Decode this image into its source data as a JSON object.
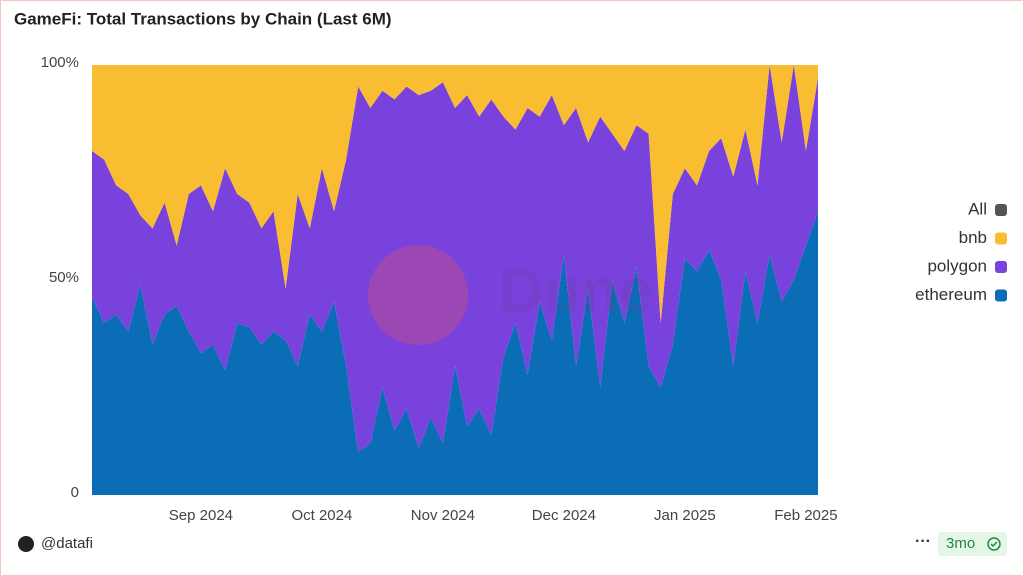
{
  "chart_data": {
    "type": "stacked_area",
    "title": "GameFi: Total Transactions by Chain (Last 6M)",
    "watermark": "Dune",
    "author": "@datafi",
    "age_badge": "3mo",
    "legend_toggle": "All",
    "categories": [
      null,
      null,
      null,
      null,
      null,
      null,
      null,
      null,
      null,
      "Sep 2024",
      null,
      null,
      null,
      null,
      null,
      null,
      null,
      null,
      null,
      "Oct 2024",
      null,
      null,
      null,
      null,
      null,
      null,
      null,
      null,
      null,
      "Nov 2024",
      null,
      null,
      null,
      null,
      null,
      null,
      null,
      null,
      null,
      "Dec 2024",
      null,
      null,
      null,
      null,
      null,
      null,
      null,
      null,
      null,
      "Jan 2025",
      null,
      null,
      null,
      null,
      null,
      null,
      null,
      null,
      null,
      "Feb 2025",
      null
    ],
    "series": [
      {
        "name": "ethereum",
        "color": "#0a6db5",
        "values": [
          46,
          40,
          42,
          38,
          49,
          35,
          42,
          44,
          38,
          33,
          35,
          29,
          40,
          39,
          35,
          38,
          36,
          30,
          42,
          38,
          45,
          30,
          10,
          12,
          25,
          15,
          20,
          11,
          18,
          12,
          30,
          16,
          20,
          14,
          32,
          40,
          28,
          45,
          36,
          56,
          30,
          48,
          25,
          50,
          40,
          53,
          30,
          25,
          35,
          55,
          52,
          57,
          50,
          30,
          52,
          40,
          56,
          45,
          50,
          58,
          66
        ]
      },
      {
        "name": "polygon",
        "color": "#7a42dc",
        "values": [
          34,
          38,
          30,
          32,
          16,
          27,
          26,
          14,
          32,
          39,
          31,
          47,
          30,
          29,
          27,
          28,
          12,
          40,
          20,
          38,
          21,
          48,
          85,
          78,
          69,
          77,
          75,
          82,
          76,
          84,
          60,
          77,
          68,
          78,
          56,
          45,
          62,
          43,
          57,
          30,
          60,
          34,
          63,
          34,
          40,
          33,
          54,
          15,
          35,
          21,
          20,
          23,
          33,
          44,
          33,
          32,
          44,
          37,
          50,
          22,
          31
        ]
      },
      {
        "name": "bnb",
        "color": "#f9bd31",
        "values": [
          20,
          22,
          28,
          30,
          35,
          38,
          32,
          42,
          30,
          28,
          34,
          24,
          30,
          32,
          38,
          34,
          52,
          30,
          38,
          24,
          34,
          22,
          5,
          10,
          6,
          8,
          5,
          7,
          6,
          4,
          10,
          7,
          12,
          8,
          12,
          15,
          10,
          12,
          7,
          14,
          10,
          18,
          12,
          16,
          20,
          14,
          16,
          60,
          30,
          24,
          28,
          20,
          17,
          26,
          15,
          28,
          0,
          18,
          0,
          20,
          3
        ]
      }
    ],
    "ylim": [
      0,
      100
    ],
    "yticks": [
      0,
      {
        "value": 50,
        "label": "50%"
      },
      {
        "value": 100,
        "label": "100%"
      }
    ],
    "legend": "right"
  }
}
